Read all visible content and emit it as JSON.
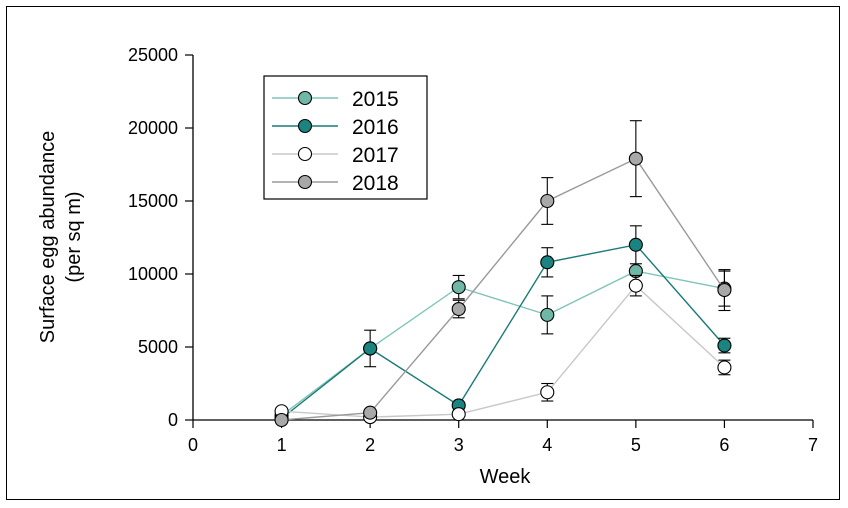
{
  "chart_data": {
    "type": "line",
    "title": "",
    "xlabel": "Week",
    "ylabel_lines": [
      "Surface egg abundance",
      "(per sq m)"
    ],
    "xlim": [
      0,
      7
    ],
    "ylim": [
      0,
      25000
    ],
    "x_ticks": [
      0,
      1,
      2,
      3,
      4,
      5,
      6,
      7
    ],
    "y_ticks": [
      0,
      5000,
      10000,
      15000,
      20000,
      25000
    ],
    "grid": false,
    "legend_position": "top-left",
    "series": [
      {
        "name": "2015",
        "line_color": "#7fc4b8",
        "marker_fill": "#6fb8a8",
        "x": [
          1,
          2,
          3,
          4,
          5,
          6
        ],
        "y": [
          300,
          4900,
          9100,
          7200,
          10200,
          9000
        ],
        "err": [
          0,
          0,
          800,
          1300,
          0,
          1200
        ]
      },
      {
        "name": "2016",
        "line_color": "#1a7a78",
        "marker_fill": "#1a8580",
        "x": [
          1,
          2,
          3,
          4,
          5,
          6
        ],
        "y": [
          100,
          4900,
          1000,
          10800,
          12000,
          5100
        ],
        "err": [
          0,
          1250,
          0,
          1000,
          1300,
          500
        ]
      },
      {
        "name": "2017",
        "line_color": "#c8c8c8",
        "marker_fill": "#ffffff",
        "x": [
          1,
          2,
          3,
          4,
          5,
          6
        ],
        "y": [
          600,
          200,
          400,
          1900,
          9200,
          3600
        ],
        "err": [
          0,
          0,
          0,
          600,
          700,
          500
        ]
      },
      {
        "name": "2018",
        "line_color": "#9a9a9a",
        "marker_fill": "#a8a8a8",
        "x": [
          1,
          2,
          3,
          4,
          5,
          6
        ],
        "y": [
          0,
          500,
          7600,
          15000,
          17900,
          8900
        ],
        "err": [
          0,
          0,
          600,
          1600,
          2600,
          1400
        ]
      }
    ]
  }
}
